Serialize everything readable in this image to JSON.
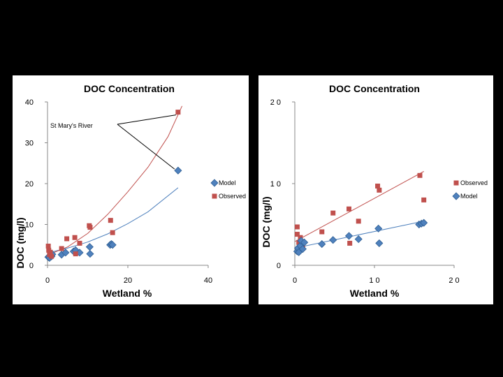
{
  "charts": [
    {
      "title": "DOC Concentration",
      "xlabel": "Wetland %",
      "ylabel": "DOC (mg/l)",
      "annotation": "St Mary's River",
      "legend": [
        {
          "name": "Model",
          "color": "#4f81bd",
          "marker": "diamond"
        },
        {
          "name": "Observed",
          "color": "#c0504d",
          "marker": "square"
        }
      ]
    },
    {
      "title": "DOC Concentration",
      "xlabel": "Wetland %",
      "ylabel": "DOC (mg/l)",
      "legend": [
        {
          "name": "Observed",
          "color": "#c0504d",
          "marker": "square"
        },
        {
          "name": "Model",
          "color": "#4f81bd",
          "marker": "diamond"
        }
      ]
    }
  ],
  "chart_data": [
    {
      "type": "scatter",
      "title": "DOC Concentration",
      "xlabel": "Wetland %",
      "ylabel": "DOC (mg/l)",
      "xlim": [
        0,
        40
      ],
      "ylim": [
        0,
        40
      ],
      "xticks": [
        0,
        20,
        40
      ],
      "yticks": [
        0,
        10,
        20,
        30,
        40
      ],
      "grid": false,
      "legend_position": "right",
      "series": [
        {
          "name": "Model",
          "marker": "diamond",
          "color": "#4f81bd",
          "points": [
            [
              0.2,
              2.0
            ],
            [
              0.4,
              2.2
            ],
            [
              0.5,
              1.8
            ],
            [
              0.7,
              2.5
            ],
            [
              1.0,
              2.2
            ],
            [
              1.2,
              2.7
            ],
            [
              3.5,
              2.6
            ],
            [
              4.5,
              3.1
            ],
            [
              6.5,
              3.4
            ],
            [
              7.0,
              3.7
            ],
            [
              8.0,
              3.1
            ],
            [
              10.5,
              4.5
            ],
            [
              10.6,
              2.8
            ],
            [
              15.6,
              5.0
            ],
            [
              15.9,
              5.2
            ],
            [
              16.2,
              5.0
            ],
            [
              32.5,
              23.2
            ]
          ]
        },
        {
          "name": "Observed",
          "marker": "square",
          "color": "#c0504d",
          "points": [
            [
              0.2,
              4.7
            ],
            [
              0.3,
              3.7
            ],
            [
              0.5,
              2.6
            ],
            [
              0.7,
              3.2
            ],
            [
              1.0,
              2.2
            ],
            [
              3.5,
              4.1
            ],
            [
              4.8,
              6.5
            ],
            [
              6.8,
              6.8
            ],
            [
              7.0,
              2.8
            ],
            [
              8.0,
              5.4
            ],
            [
              10.4,
              9.7
            ],
            [
              10.6,
              9.3
            ],
            [
              15.7,
              11.0
            ],
            [
              16.2,
              8.0
            ],
            [
              32.5,
              37.5
            ]
          ]
        }
      ],
      "trendlines": [
        {
          "series": "Model",
          "color": "#4f81bd",
          "points": [
            [
              0,
              3.0
            ],
            [
              5,
              4.2
            ],
            [
              10,
              5.7
            ],
            [
              15,
              7.7
            ],
            [
              20,
              10.2
            ],
            [
              25,
              13.1
            ],
            [
              32.5,
              19.0
            ]
          ]
        },
        {
          "series": "Observed",
          "color": "#c0504d",
          "points": [
            [
              0,
              2.5
            ],
            [
              5,
              4.5
            ],
            [
              10,
              7.8
            ],
            [
              15,
              12.5
            ],
            [
              20,
              18.0
            ],
            [
              25,
              24.0
            ],
            [
              30,
              31.5
            ],
            [
              33.5,
              39.0
            ]
          ]
        }
      ]
    },
    {
      "type": "scatter",
      "title": "DOC Concentration",
      "xlabel": "Wetland %",
      "ylabel": "DOC (mg/l)",
      "xlim": [
        0,
        20
      ],
      "ylim": [
        0,
        20
      ],
      "xticks": [
        0,
        10,
        20
      ],
      "yticks": [
        0,
        10,
        20
      ],
      "grid": false,
      "legend_position": "right",
      "series": [
        {
          "name": "Observed",
          "marker": "square",
          "color": "#c0504d",
          "points": [
            [
              0.3,
              4.7
            ],
            [
              0.3,
              3.8
            ],
            [
              0.5,
              2.8
            ],
            [
              0.7,
              3.4
            ],
            [
              1.0,
              2.1
            ],
            [
              3.4,
              4.1
            ],
            [
              4.8,
              6.4
            ],
            [
              6.8,
              6.9
            ],
            [
              6.9,
              2.7
            ],
            [
              8.0,
              5.4
            ],
            [
              10.4,
              9.7
            ],
            [
              10.6,
              9.2
            ],
            [
              15.7,
              11.0
            ],
            [
              16.2,
              8.0
            ]
          ]
        },
        {
          "name": "Model",
          "marker": "diamond",
          "color": "#4f81bd",
          "points": [
            [
              0.3,
              1.7
            ],
            [
              0.4,
              2.1
            ],
            [
              0.5,
              1.6
            ],
            [
              0.7,
              2.4
            ],
            [
              0.8,
              3.0
            ],
            [
              1.0,
              2.0
            ],
            [
              1.2,
              2.8
            ],
            [
              3.4,
              2.6
            ],
            [
              4.8,
              3.1
            ],
            [
              6.8,
              3.6
            ],
            [
              8.0,
              3.2
            ],
            [
              10.5,
              4.5
            ],
            [
              10.6,
              2.7
            ],
            [
              15.6,
              5.0
            ],
            [
              15.9,
              5.1
            ],
            [
              16.2,
              5.2
            ]
          ]
        }
      ],
      "trendlines": [
        {
          "series": "Observed",
          "color": "#c0504d",
          "points": [
            [
              0,
              2.9
            ],
            [
              16.2,
              11.5
            ]
          ]
        },
        {
          "series": "Model",
          "color": "#4f81bd",
          "points": [
            [
              0,
              2.1
            ],
            [
              16.2,
              5.4
            ]
          ]
        }
      ]
    }
  ]
}
